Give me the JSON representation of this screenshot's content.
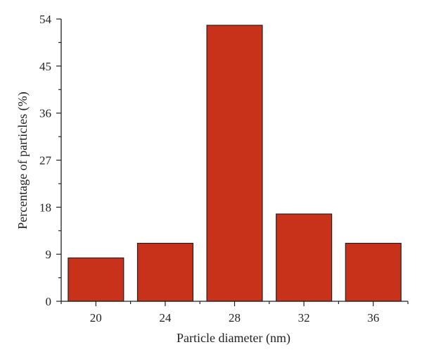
{
  "chart_data": {
    "type": "bar",
    "categories": [
      "20",
      "24",
      "28",
      "32",
      "36"
    ],
    "values": [
      8.3,
      11.1,
      52.8,
      16.7,
      11.1
    ],
    "xlabel": "Particle diameter (nm)",
    "ylabel": "Percentage of particles (%)",
    "ylim": [
      0,
      54
    ],
    "yticks": [
      "0",
      "9",
      "18",
      "27",
      "36",
      "45",
      "54"
    ],
    "grid": false,
    "bar_color": "#c8321a",
    "bar_edge_color": "#222222"
  }
}
